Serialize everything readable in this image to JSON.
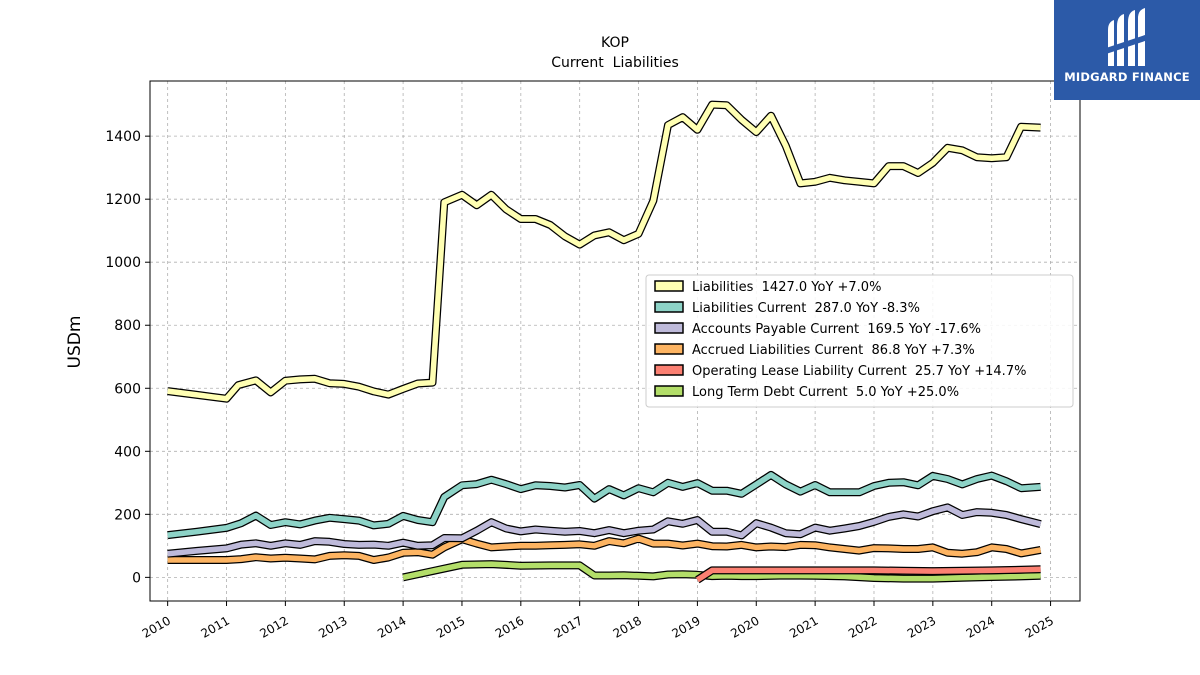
{
  "brand": {
    "name": "MIDGARD FINANCE",
    "background": "#2c5aa8"
  },
  "chart_data": {
    "type": "line",
    "title": "KOP",
    "subtitle": "Current  Liabilities",
    "ylabel": "USDm",
    "xlabel": "",
    "xlim": [
      2009.7,
      2025.5
    ],
    "ylim": [
      -75,
      1575
    ],
    "xticks": [
      "2010",
      "2011",
      "2012",
      "2013",
      "2014",
      "2015",
      "2016",
      "2017",
      "2018",
      "2019",
      "2020",
      "2021",
      "2022",
      "2023",
      "2024",
      "2025"
    ],
    "yticks": [
      "0",
      "200",
      "400",
      "600",
      "800",
      "1000",
      "1200",
      "1400"
    ],
    "grid": true,
    "legend_position": "center-right",
    "series": [
      {
        "name": "Liabilities",
        "legend": "Liabilities  1427.0 YoY +7.0%",
        "color": "#ffffb3",
        "x": [
          2010.0,
          2010.25,
          2010.5,
          2010.75,
          2011.0,
          2011.2,
          2011.5,
          2011.75,
          2012.0,
          2012.25,
          2012.5,
          2012.75,
          2013.0,
          2013.25,
          2013.5,
          2013.75,
          2014.0,
          2014.25,
          2014.5,
          2014.7,
          2015.0,
          2015.25,
          2015.5,
          2015.75,
          2016.0,
          2016.25,
          2016.5,
          2016.75,
          2017.0,
          2017.25,
          2017.5,
          2017.75,
          2018.0,
          2018.25,
          2018.5,
          2018.75,
          2019.0,
          2019.25,
          2019.5,
          2019.75,
          2020.0,
          2020.25,
          2020.5,
          2020.75,
          2021.0,
          2021.25,
          2021.5,
          2021.75,
          2022.0,
          2022.25,
          2022.5,
          2022.75,
          2023.0,
          2023.25,
          2023.5,
          2023.75,
          2024.0,
          2024.25,
          2024.5,
          2024.83
        ],
        "y": [
          591,
          585,
          579,
          573,
          567,
          610,
          625,
          587,
          624,
          628,
          630,
          616,
          614,
          605,
          590,
          580,
          598,
          615,
          618,
          1190,
          1214,
          1181,
          1214,
          1168,
          1137,
          1137,
          1118,
          1082,
          1056,
          1085,
          1095,
          1070,
          1090,
          1195,
          1435,
          1460,
          1420,
          1500,
          1498,
          1452,
          1413,
          1465,
          1370,
          1250,
          1255,
          1268,
          1260,
          1255,
          1250,
          1305,
          1305,
          1283,
          1315,
          1363,
          1355,
          1333,
          1330,
          1333,
          1430,
          1427
        ]
      },
      {
        "name": "Liabilities Current",
        "legend": "Liabilities Current  287.0 YoY -8.3%",
        "color": "#8dd3c7",
        "x": [
          2010.0,
          2010.5,
          2011.0,
          2011.25,
          2011.5,
          2011.75,
          2012.0,
          2012.25,
          2012.5,
          2012.75,
          2013.0,
          2013.25,
          2013.5,
          2013.75,
          2014.0,
          2014.25,
          2014.5,
          2014.7,
          2015.0,
          2015.25,
          2015.5,
          2015.75,
          2016.0,
          2016.25,
          2016.5,
          2016.75,
          2017.0,
          2017.25,
          2017.5,
          2017.75,
          2018.0,
          2018.25,
          2018.5,
          2018.75,
          2019.0,
          2019.25,
          2019.5,
          2019.75,
          2020.0,
          2020.25,
          2020.5,
          2020.75,
          2021.0,
          2021.25,
          2021.5,
          2021.75,
          2022.0,
          2022.25,
          2022.5,
          2022.75,
          2023.0,
          2023.25,
          2023.5,
          2023.75,
          2024.0,
          2024.25,
          2024.5,
          2024.83
        ],
        "y": [
          134,
          145,
          157,
          172,
          196,
          166,
          175,
          168,
          180,
          189,
          185,
          180,
          165,
          170,
          195,
          182,
          175,
          255,
          292,
          296,
          310,
          296,
          280,
          292,
          290,
          285,
          293,
          250,
          280,
          260,
          283,
          270,
          300,
          287,
          299,
          275,
          275,
          265,
          295,
          325,
          295,
          272,
          293,
          270,
          270,
          270,
          290,
          300,
          302,
          292,
          322,
          312,
          295,
          312,
          323,
          305,
          283,
          287
        ]
      },
      {
        "name": "Accounts Payable Current",
        "legend": "Accounts Payable Current  169.5 YoY -17.6%",
        "color": "#bebada",
        "x": [
          2010.0,
          2010.5,
          2011.0,
          2011.25,
          2011.5,
          2011.75,
          2012.0,
          2012.25,
          2012.5,
          2012.75,
          2013.0,
          2013.25,
          2013.5,
          2013.75,
          2014.0,
          2014.25,
          2014.5,
          2014.7,
          2015.0,
          2015.25,
          2015.5,
          2015.75,
          2016.0,
          2016.25,
          2016.5,
          2016.75,
          2017.0,
          2017.25,
          2017.5,
          2017.75,
          2018.0,
          2018.25,
          2018.5,
          2018.75,
          2019.0,
          2019.25,
          2019.5,
          2019.75,
          2020.0,
          2020.25,
          2020.5,
          2020.75,
          2021.0,
          2021.25,
          2021.5,
          2021.75,
          2022.0,
          2022.25,
          2022.5,
          2022.75,
          2023.0,
          2023.25,
          2023.5,
          2023.75,
          2024.0,
          2024.25,
          2024.5,
          2024.83
        ],
        "y": [
          75,
          84,
          92,
          104,
          108,
          100,
          108,
          103,
          115,
          113,
          106,
          103,
          104,
          100,
          110,
          100,
          102,
          125,
          124,
          148,
          175,
          155,
          146,
          152,
          148,
          145,
          147,
          140,
          150,
          140,
          148,
          152,
          178,
          170,
          182,
          145,
          145,
          133,
          172,
          158,
          140,
          137,
          158,
          148,
          155,
          163,
          176,
          192,
          200,
          193,
          210,
          222,
          198,
          207,
          205,
          198,
          185,
          169
        ]
      },
      {
        "name": "Accrued Liabilities Current",
        "legend": "Accrued Liabilities Current  86.8 YoY +7.3%",
        "color": "#fdb462",
        "x": [
          2010.0,
          2010.5,
          2011.0,
          2011.25,
          2011.5,
          2011.75,
          2012.0,
          2012.25,
          2012.5,
          2012.75,
          2013.0,
          2013.25,
          2013.5,
          2013.75,
          2014.0,
          2014.25,
          2014.5,
          2014.7,
          2015.0,
          2015.25,
          2015.5,
          2015.75,
          2016.0,
          2016.25,
          2016.5,
          2016.75,
          2017.0,
          2017.25,
          2017.5,
          2017.75,
          2018.0,
          2018.25,
          2018.5,
          2018.75,
          2019.0,
          2019.25,
          2019.5,
          2019.75,
          2020.0,
          2020.25,
          2020.5,
          2020.75,
          2021.0,
          2021.25,
          2021.5,
          2021.75,
          2022.0,
          2022.25,
          2022.5,
          2022.75,
          2023.0,
          2023.25,
          2023.5,
          2023.75,
          2024.0,
          2024.25,
          2024.5,
          2024.83
        ],
        "y": [
          55,
          55,
          55,
          58,
          64,
          60,
          62,
          60,
          57,
          68,
          70,
          68,
          55,
          63,
          78,
          80,
          72,
          95,
          121,
          107,
          95,
          98,
          100,
          100,
          102,
          103,
          105,
          100,
          115,
          108,
          123,
          107,
          107,
          101,
          107,
          99,
          98,
          103,
          95,
          98,
          96,
          103,
          102,
          95,
          90,
          85,
          93,
          92,
          90,
          90,
          95,
          78,
          75,
          80,
          95,
          90,
          76,
          87
        ]
      },
      {
        "name": "Operating Lease Liability Current",
        "legend": "Operating Lease Liability Current  25.7 YoY +14.7%",
        "color": "#fb8072",
        "x": [
          2019.0,
          2019.25,
          2019.5,
          2019.75,
          2020.0,
          2020.5,
          2021.0,
          2021.5,
          2022.0,
          2022.5,
          2023.0,
          2023.5,
          2024.0,
          2024.5,
          2024.83
        ],
        "y": [
          -8,
          22,
          22,
          22,
          22,
          22,
          22,
          22,
          22,
          21,
          20,
          21,
          22,
          24,
          26
        ]
      },
      {
        "name": "Long Term Debt Current",
        "legend": "Long Term Debt Current  5.0 YoY +25.0%",
        "color": "#b3de69",
        "x": [
          2014.0,
          2014.5,
          2015.0,
          2015.5,
          2016.0,
          2016.5,
          2017.0,
          2017.25,
          2017.5,
          2017.75,
          2018.0,
          2018.25,
          2018.5,
          2018.75,
          2019.0,
          2019.25,
          2019.5,
          2019.75,
          2020.0,
          2020.5,
          2021.0,
          2021.5,
          2022.0,
          2022.5,
          2023.0,
          2023.5,
          2024.0,
          2024.5,
          2024.83
        ],
        "y": [
          0,
          20,
          40,
          42,
          37,
          38,
          38,
          6,
          6,
          7,
          5,
          3,
          9,
          10,
          8,
          4,
          5,
          4,
          4,
          6,
          5,
          3,
          -2,
          -4,
          -4,
          -1,
          1,
          3,
          5
        ]
      }
    ]
  }
}
